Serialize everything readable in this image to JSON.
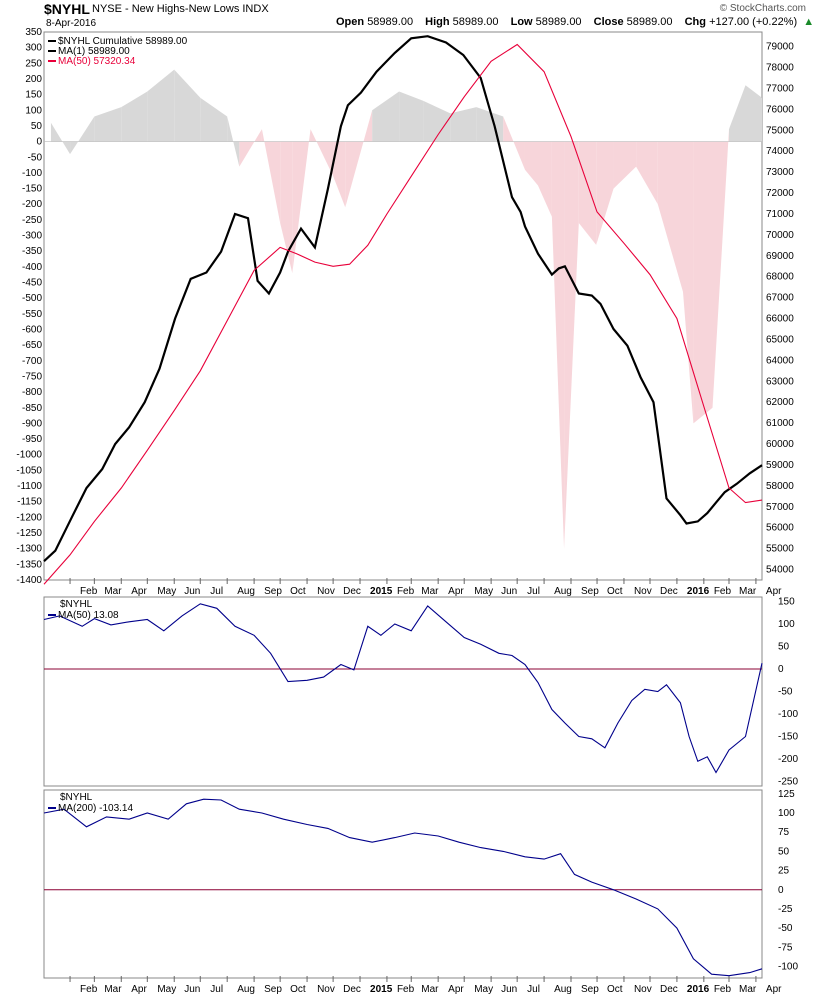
{
  "header": {
    "symbol": "$NYHL",
    "description": "NYSE - New Highs-New Lows INDX",
    "date": "8-Apr-2016",
    "open_label": "Open",
    "open": "58989.00",
    "high_label": "High",
    "high": "58989.00",
    "low_label": "Low",
    "low": "58989.00",
    "close_label": "Close",
    "close": "58989.00",
    "chg_label": "Chg",
    "chg": "+127.00 (+0.22%)",
    "logo": "© StockCharts.com"
  },
  "colors": {
    "cumulative": "#000000",
    "ma50": "#e8003a",
    "oscillator": "#00008b",
    "zero_line": "#8b0033",
    "pos_hist": "#d8d8d8",
    "neg_hist": "#f7d5da"
  },
  "x_labels": [
    {
      "label": "Feb",
      "date": "2014-02"
    },
    {
      "label": "Mar",
      "date": "2014-03"
    },
    {
      "label": "Apr",
      "date": "2014-04"
    },
    {
      "label": "May",
      "date": "2014-05"
    },
    {
      "label": "Jun",
      "date": "2014-06"
    },
    {
      "label": "Jul",
      "date": "2014-07"
    },
    {
      "label": "Aug",
      "date": "2014-08"
    },
    {
      "label": "Sep",
      "date": "2014-09"
    },
    {
      "label": "Oct",
      "date": "2014-10"
    },
    {
      "label": "Nov",
      "date": "2014-11"
    },
    {
      "label": "Dec",
      "date": "2014-12"
    },
    {
      "label": "2015",
      "date": "2015-01"
    },
    {
      "label": "Feb",
      "date": "2015-02"
    },
    {
      "label": "Mar",
      "date": "2015-03"
    },
    {
      "label": "Apr",
      "date": "2015-04"
    },
    {
      "label": "May",
      "date": "2015-05"
    },
    {
      "label": "Jun",
      "date": "2015-06"
    },
    {
      "label": "Jul",
      "date": "2015-07"
    },
    {
      "label": "Aug",
      "date": "2015-08"
    },
    {
      "label": "Sep",
      "date": "2015-09"
    },
    {
      "label": "Oct",
      "date": "2015-10"
    },
    {
      "label": "Nov",
      "date": "2015-11"
    },
    {
      "label": "Dec",
      "date": "2015-12"
    },
    {
      "label": "2016",
      "date": "2016-01"
    },
    {
      "label": "Feb",
      "date": "2016-02"
    },
    {
      "label": "Mar",
      "date": "2016-03"
    },
    {
      "label": "Apr",
      "date": "2016-04"
    }
  ],
  "chart_data": [
    {
      "type": "line",
      "title": "$NYHL",
      "legend": [
        {
          "text": "$NYHL Cumulative 58989.00",
          "color": "#000000"
        },
        {
          "text": "MA(1) 58989.00",
          "color": "#000000"
        },
        {
          "text": "MA(50) 57320.34",
          "color": "#e8003a"
        }
      ],
      "legend_position": "top-left",
      "left_axis": {
        "ylim": [
          -1400,
          350
        ],
        "ticks": [
          350,
          300,
          250,
          200,
          150,
          100,
          50,
          0,
          -50,
          -100,
          -150,
          -200,
          -250,
          -300,
          -350,
          -400,
          -450,
          -500,
          -550,
          -600,
          -650,
          -700,
          -750,
          -800,
          -850,
          -900,
          -950,
          -1000,
          -1050,
          -1100,
          -1150,
          -1200,
          -1250,
          -1300,
          -1350,
          -1400
        ]
      },
      "right_axis": {
        "ylim": [
          53500,
          79700
        ],
        "ticks": [
          79000,
          78000,
          77000,
          76000,
          75000,
          74000,
          73000,
          72000,
          71000,
          70000,
          69000,
          68000,
          67000,
          66000,
          65000,
          64000,
          63000,
          62000,
          61000,
          60000,
          59000,
          58000,
          57000,
          56000,
          55000,
          54000
        ]
      },
      "grid": false,
      "series": [
        {
          "name": "$NYHL Cumulative",
          "axis": "right",
          "x": [
            "2014-01-02",
            "2014-01-15",
            "2014-02-03",
            "2014-02-20",
            "2014-03-10",
            "2014-03-25",
            "2014-04-10",
            "2014-04-28",
            "2014-05-15",
            "2014-06-02",
            "2014-06-20",
            "2014-07-08",
            "2014-07-25",
            "2014-08-10",
            "2014-08-25",
            "2014-09-05",
            "2014-09-18",
            "2014-10-01",
            "2014-10-10",
            "2014-10-25",
            "2014-11-10",
            "2014-11-25",
            "2014-12-10",
            "2014-12-18",
            "2015-01-02",
            "2015-01-20",
            "2015-02-10",
            "2015-03-01",
            "2015-03-20",
            "2015-04-10",
            "2015-04-30",
            "2015-05-20",
            "2015-06-05",
            "2015-06-25",
            "2015-07-05",
            "2015-07-10",
            "2015-07-25",
            "2015-08-10",
            "2015-08-18",
            "2015-08-25",
            "2015-09-10",
            "2015-09-25",
            "2015-10-05",
            "2015-10-20",
            "2015-11-05",
            "2015-11-20",
            "2015-12-05",
            "2015-12-20",
            "2016-01-05",
            "2016-01-12",
            "2016-01-25",
            "2016-02-05",
            "2016-02-15",
            "2016-02-25",
            "2016-03-10",
            "2016-03-25",
            "2016-04-08"
          ],
          "values": [
            54400,
            54900,
            56500,
            57900,
            58800,
            60000,
            60800,
            62000,
            63600,
            66000,
            67900,
            68200,
            69200,
            71000,
            70800,
            67800,
            67200,
            68200,
            69200,
            70300,
            69400,
            72200,
            75200,
            76200,
            76800,
            77800,
            78700,
            79400,
            79500,
            79200,
            78600,
            77500,
            75200,
            71800,
            71100,
            70400,
            69100,
            68100,
            68400,
            68500,
            67200,
            67100,
            66700,
            65500,
            64700,
            63200,
            62000,
            57400,
            56600,
            56200,
            56300,
            56700,
            57200,
            57700,
            58100,
            58600,
            58989
          ]
        },
        {
          "name": "MA(50)",
          "axis": "right",
          "x": [
            "2014-01-02",
            "2014-02-01",
            "2014-03-01",
            "2014-04-01",
            "2014-05-01",
            "2014-06-01",
            "2014-07-01",
            "2014-08-01",
            "2014-09-01",
            "2014-10-01",
            "2014-10-20",
            "2014-11-10",
            "2014-12-01",
            "2014-12-20",
            "2015-01-10",
            "2015-02-01",
            "2015-03-01",
            "2015-04-01",
            "2015-05-01",
            "2015-06-01",
            "2015-07-01",
            "2015-08-01",
            "2015-09-01",
            "2015-10-01",
            "2015-11-01",
            "2015-12-01",
            "2016-01-01",
            "2016-02-01",
            "2016-03-01",
            "2016-03-20",
            "2016-04-08"
          ],
          "values": [
            53300,
            54700,
            56300,
            57900,
            59700,
            61600,
            63500,
            65900,
            68300,
            69400,
            69100,
            68700,
            68500,
            68600,
            69500,
            71000,
            72800,
            74800,
            76600,
            78300,
            79100,
            77800,
            74700,
            71100,
            69600,
            68100,
            66000,
            61800,
            57900,
            57200,
            57320
          ]
        }
      ],
      "histogram": {
        "name": "NYHL daily",
        "axis": "left",
        "x": [
          "2014-01-10",
          "2014-02-01",
          "2014-03-01",
          "2014-04-01",
          "2014-05-01",
          "2014-06-01",
          "2014-07-01",
          "2014-08-01",
          "2014-08-15",
          "2014-09-10",
          "2014-10-01",
          "2014-10-15",
          "2014-11-05",
          "2014-12-01",
          "2014-12-15",
          "2015-01-15",
          "2015-02-15",
          "2015-03-15",
          "2015-04-15",
          "2015-05-15",
          "2015-06-15",
          "2015-07-10",
          "2015-07-25",
          "2015-08-10",
          "2015-08-24",
          "2015-09-10",
          "2015-09-30",
          "2015-10-20",
          "2015-11-15",
          "2015-12-10",
          "2016-01-08",
          "2016-01-20",
          "2016-02-11",
          "2016-03-01",
          "2016-03-20",
          "2016-04-08"
        ],
        "values": [
          60,
          -40,
          80,
          110,
          160,
          230,
          140,
          80,
          -80,
          40,
          -260,
          -420,
          40,
          -110,
          -210,
          100,
          160,
          130,
          90,
          110,
          80,
          -90,
          -140,
          -240,
          -1300,
          -260,
          -330,
          -150,
          -80,
          -200,
          -480,
          -900,
          -850,
          40,
          180,
          140
        ]
      }
    },
    {
      "type": "line",
      "title": "$NYHL",
      "legend": [
        {
          "text": "MA(50) 13.08",
          "color": "#00008b"
        }
      ],
      "legend_position": "top-left",
      "ylim": [
        -260,
        160
      ],
      "ticks": [
        150,
        100,
        50,
        0,
        -50,
        -100,
        -150,
        -200,
        -250
      ],
      "reference_line": 0,
      "grid": false,
      "series": [
        {
          "name": "MA(50)",
          "x": [
            "2014-01-02",
            "2014-01-20",
            "2014-02-15",
            "2014-03-01",
            "2014-03-20",
            "2014-04-10",
            "2014-05-01",
            "2014-05-20",
            "2014-06-10",
            "2014-07-01",
            "2014-07-20",
            "2014-08-10",
            "2014-09-01",
            "2014-09-20",
            "2014-10-10",
            "2014-11-01",
            "2014-11-20",
            "2014-12-10",
            "2014-12-25",
            "2015-01-10",
            "2015-01-25",
            "2015-02-10",
            "2015-03-01",
            "2015-03-20",
            "2015-04-10",
            "2015-05-01",
            "2015-05-20",
            "2015-06-10",
            "2015-06-25",
            "2015-07-10",
            "2015-07-25",
            "2015-08-10",
            "2015-08-25",
            "2015-09-10",
            "2015-09-25",
            "2015-10-10",
            "2015-10-25",
            "2015-11-10",
            "2015-11-25",
            "2015-12-10",
            "2015-12-20",
            "2016-01-05",
            "2016-01-15",
            "2016-01-25",
            "2016-02-05",
            "2016-02-15",
            "2016-03-01",
            "2016-03-20",
            "2016-04-08"
          ],
          "values": [
            110,
            118,
            95,
            112,
            98,
            105,
            110,
            85,
            118,
            145,
            135,
            95,
            75,
            35,
            -28,
            -25,
            -18,
            10,
            -2,
            95,
            75,
            100,
            85,
            140,
            105,
            70,
            55,
            35,
            30,
            10,
            -30,
            -90,
            -120,
            -150,
            -155,
            -175,
            -120,
            -70,
            -45,
            -50,
            -35,
            -75,
            -150,
            -205,
            -195,
            -230,
            -180,
            -150,
            13
          ]
        }
      ]
    },
    {
      "type": "line",
      "title": "$NYHL",
      "legend": [
        {
          "text": "MA(200) -103.14",
          "color": "#00008b"
        }
      ],
      "legend_position": "top-left",
      "ylim": [
        -115,
        130
      ],
      "ticks": [
        125,
        100,
        75,
        50,
        25,
        0,
        -25,
        -50,
        -75,
        -100
      ],
      "reference_line": 0,
      "grid": false,
      "series": [
        {
          "name": "MA(200)",
          "x": [
            "2014-01-02",
            "2014-01-25",
            "2014-02-20",
            "2014-03-15",
            "2014-04-10",
            "2014-05-01",
            "2014-05-25",
            "2014-06-15",
            "2014-07-05",
            "2014-07-25",
            "2014-08-15",
            "2014-09-10",
            "2014-10-05",
            "2014-11-01",
            "2014-11-25",
            "2014-12-20",
            "2015-01-15",
            "2015-02-10",
            "2015-03-05",
            "2015-04-01",
            "2015-04-25",
            "2015-05-20",
            "2015-06-15",
            "2015-07-10",
            "2015-08-01",
            "2015-08-20",
            "2015-09-05",
            "2015-09-25",
            "2015-10-20",
            "2015-11-15",
            "2015-12-10",
            "2016-01-01",
            "2016-01-20",
            "2016-02-10",
            "2016-03-01",
            "2016-03-25",
            "2016-04-08"
          ],
          "values": [
            100,
            105,
            82,
            95,
            92,
            100,
            92,
            112,
            118,
            117,
            105,
            100,
            92,
            85,
            80,
            68,
            62,
            68,
            74,
            70,
            62,
            55,
            50,
            43,
            40,
            47,
            20,
            10,
            0,
            -12,
            -25,
            -50,
            -90,
            -110,
            -112,
            -108,
            -103
          ]
        }
      ]
    }
  ]
}
